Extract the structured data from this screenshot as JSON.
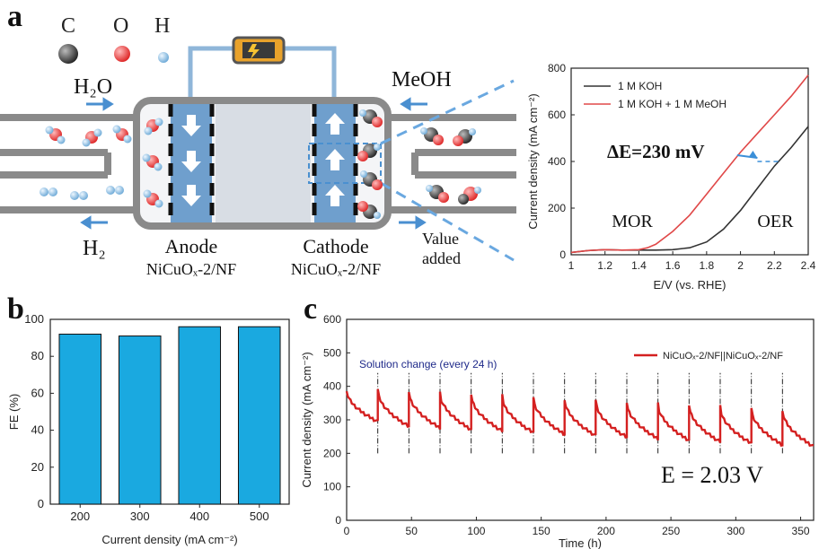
{
  "panels": {
    "a": "a",
    "b": "b",
    "c": "c"
  },
  "schematic": {
    "atoms": [
      "C",
      "O",
      "H"
    ],
    "inlet_left": "H₂O",
    "outlet_left": "H₂",
    "inlet_right": "MeOH",
    "anode_label": "Anode",
    "anode_material": "NiCuOₓ-2/NF",
    "cathode_label": "Cathode",
    "cathode_material": "NiCuOₓ-2/NF",
    "value_added_line1": "Value",
    "value_added_line2": "added",
    "colors": {
      "electrode": "#6f9fcd",
      "membrane": "#d8dde4",
      "pipe": "#8a8a8a",
      "oxygen": "#e0393d",
      "hydrogen": "#8fc3e6",
      "carbon": "#444444"
    }
  },
  "chart_data": [
    {
      "id": "a-lsv",
      "type": "line",
      "xlabel": "E/V (vs. RHE)",
      "ylabel": "Current density (mA cm⁻²)",
      "xlim": [
        1.0,
        2.4
      ],
      "ylim": [
        0,
        800
      ],
      "xticks": [
        1.0,
        1.2,
        1.4,
        1.6,
        1.8,
        2.0,
        2.2,
        2.4
      ],
      "yticks": [
        0,
        200,
        400,
        600,
        800
      ],
      "legend_position": "top-left",
      "series": [
        {
          "name": "1 M KOH",
          "color": "#333333",
          "x": [
            1.0,
            1.1,
            1.2,
            1.3,
            1.4,
            1.5,
            1.6,
            1.7,
            1.8,
            1.9,
            2.0,
            2.1,
            2.2,
            2.3,
            2.4
          ],
          "y": [
            10,
            18,
            22,
            20,
            20,
            20,
            22,
            30,
            55,
            110,
            190,
            285,
            380,
            460,
            550
          ]
        },
        {
          "name": "1 M KOH + 1 M MeOH",
          "color": "#e04848",
          "x": [
            1.0,
            1.1,
            1.2,
            1.3,
            1.4,
            1.45,
            1.5,
            1.6,
            1.7,
            1.8,
            1.9,
            2.0,
            2.1,
            2.2,
            2.3,
            2.4
          ],
          "y": [
            10,
            18,
            22,
            20,
            22,
            30,
            45,
            100,
            170,
            260,
            350,
            440,
            520,
            600,
            680,
            770
          ]
        }
      ],
      "annotations": {
        "delta_e": "ΔE=230 mV",
        "mor": "MOR",
        "oer": "OER",
        "delta_e_level": 400
      }
    },
    {
      "id": "b-fe",
      "type": "bar",
      "xlabel": "Current density (mA cm⁻²)",
      "ylabel": "FE (%)",
      "categories": [
        "200",
        "300",
        "400",
        "500"
      ],
      "values": [
        92,
        91,
        96,
        96
      ],
      "ylim": [
        0,
        100
      ],
      "yticks": [
        0,
        20,
        40,
        60,
        80,
        100
      ],
      "color": "#1aa9e0"
    },
    {
      "id": "c-stability",
      "type": "line",
      "xlabel": "Time (h)",
      "ylabel": "Current density (mA cm⁻²)",
      "xlim": [
        0,
        360
      ],
      "ylim": [
        0,
        600
      ],
      "xticks": [
        0,
        50,
        100,
        150,
        200,
        250,
        300,
        350
      ],
      "yticks": [
        0,
        100,
        200,
        300,
        400,
        500,
        600
      ],
      "legend_position": "top-right",
      "series_name": "NiCuOₓ-2/NF||NiCuOₓ-2/NF",
      "color": "#d42020",
      "cycle_hours": 24,
      "cycles": 15,
      "start_value": 390,
      "end_value": 275,
      "solution_change_note": "Solution change (every 24 h)",
      "voltage_note": "E = 2.03 V"
    }
  ]
}
